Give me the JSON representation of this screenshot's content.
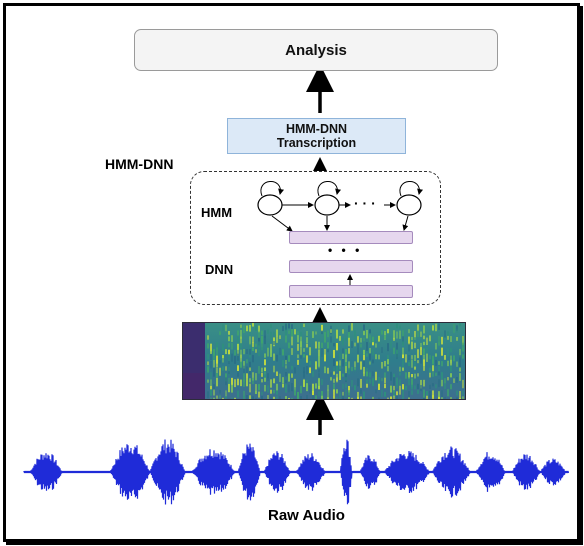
{
  "analysis": {
    "label": "Analysis"
  },
  "transcription": {
    "line1": "HMM-DNN",
    "line2": "Transcription"
  },
  "group": {
    "title": "HMM-DNN"
  },
  "hmm": {
    "label": "HMM",
    "ellipsis": "· · ·"
  },
  "dnn": {
    "label": "DNN",
    "ellipsis": "• • •"
  },
  "audio": {
    "label": "Raw Audio"
  },
  "colors": {
    "waveform": "#1f2bd8",
    "dnn_layer": "#e6d7ee",
    "transcription_fill": "#dce9f7",
    "analysis_fill": "#f4f4f4"
  }
}
